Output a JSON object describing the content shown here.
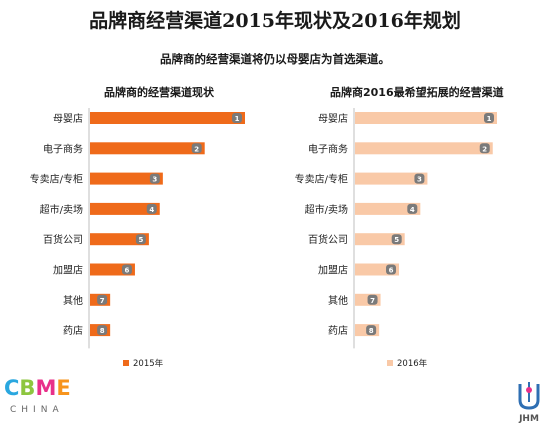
{
  "title": "品牌商经营渠道2015年现状及2016年规划",
  "subtitle": "品牌商的经营渠道将仍以母婴店为首选渠道。",
  "logos": {
    "left_name": "CBME",
    "left_sub": "CHINA",
    "right_mark": "JHM"
  },
  "colors": {
    "series_2015": "#ef6a1a",
    "series_2016": "#f9c9a7",
    "rank_badge": "#7a7a7a",
    "axis": "#bfbfbf"
  },
  "chart_data": [
    {
      "type": "bar",
      "orientation": "horizontal",
      "title": "品牌商的经营渠道现状",
      "categories": [
        "母婴店",
        "电子商务",
        "专卖店/专柜",
        "超市/卖场",
        "百货公司",
        "加盟店",
        "其他",
        "药店"
      ],
      "series": [
        {
          "name": "2015年",
          "values": [
            100,
            74,
            47,
            45,
            38,
            29,
            13,
            13
          ],
          "rank_labels": [
            "1",
            "2",
            "3",
            "4",
            "5",
            "6",
            "7",
            "8"
          ]
        }
      ],
      "xlim": [
        0,
        100
      ],
      "grid": false,
      "legend": "bottom"
    },
    {
      "type": "bar",
      "orientation": "horizontal",
      "title": "品牌商2016最希望拓展的经营渠道",
      "categories": [
        "母婴店",
        "电子商务",
        "专卖店/专柜",
        "超市/卖场",
        "百货公司",
        "加盟店",
        "其他",
        "药店"
      ],
      "series": [
        {
          "name": "2016年",
          "values": [
            100,
            97,
            51,
            46,
            35,
            31,
            18,
            17
          ],
          "rank_labels": [
            "1",
            "2",
            "3",
            "4",
            "5",
            "6",
            "7",
            "8"
          ]
        }
      ],
      "xlim": [
        0,
        100
      ],
      "grid": false,
      "legend": "bottom"
    }
  ]
}
